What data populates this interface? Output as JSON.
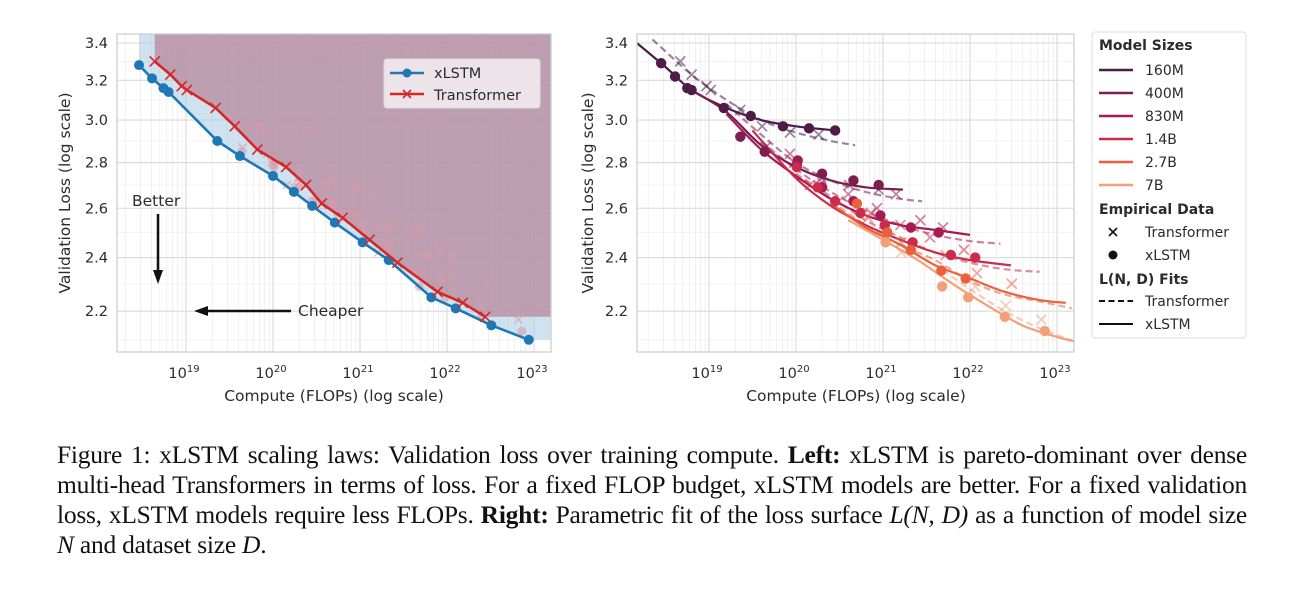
{
  "chart_data": [
    {
      "type": "line",
      "panel": "left",
      "xlabel": "Compute (FLOPs) (log scale)",
      "ylabel": "Validation Loss (log scale)",
      "xscale": "log10",
      "yscale": "log",
      "xlim_log10": [
        18.21,
        23.2
      ],
      "ylim": [
        2.06,
        3.45
      ],
      "xticks": [
        {
          "log10": 19,
          "label_base": "10",
          "label_exp": "19"
        },
        {
          "log10": 20,
          "label_base": "10",
          "label_exp": "20"
        },
        {
          "log10": 21,
          "label_base": "10",
          "label_exp": "21"
        },
        {
          "log10": 22,
          "label_base": "10",
          "label_exp": "22"
        },
        {
          "log10": 23,
          "label_base": "10",
          "label_exp": "23"
        }
      ],
      "yticks": [
        3.4,
        3.2,
        3.0,
        2.8,
        2.6,
        2.4,
        2.2
      ],
      "ytick_labels": [
        "3.4",
        "3.2",
        "3.0",
        "2.8",
        "2.6",
        "2.4",
        "2.2"
      ],
      "grid": true,
      "legend": {
        "placement": "top-right",
        "entries": [
          "xLSTM",
          "Transformer"
        ]
      },
      "series": [
        {
          "name": "xLSTM",
          "color": "#1f77b4",
          "marker": "circle",
          "x_log10": [
            18.46,
            18.61,
            18.74,
            18.8,
            19.36,
            19.62,
            20.0,
            20.24,
            20.45,
            20.71,
            21.03,
            21.33,
            21.82,
            22.1,
            22.51,
            22.94
          ],
          "y": [
            3.28,
            3.21,
            3.16,
            3.14,
            2.9,
            2.83,
            2.74,
            2.67,
            2.61,
            2.54,
            2.46,
            2.39,
            2.25,
            2.21,
            2.15,
            2.1
          ]
        },
        {
          "name": "Transformer",
          "color": "#d62728",
          "marker": "x",
          "x_log10": [
            18.64,
            18.82,
            18.95,
            19.01,
            19.34,
            19.56,
            19.82,
            20.15,
            20.38,
            20.56,
            20.8,
            21.11,
            21.43,
            21.89,
            22.18,
            22.44
          ],
          "y": [
            3.3,
            3.23,
            3.17,
            3.15,
            3.06,
            2.97,
            2.86,
            2.78,
            2.7,
            2.62,
            2.56,
            2.47,
            2.38,
            2.27,
            2.23,
            2.18
          ]
        }
      ],
      "shaded_regions": [
        {
          "name": "xLSTM dominated region",
          "color": "#a6cbe3",
          "bounded_by": "xLSTM"
        },
        {
          "name": "Transformer dominated region",
          "color": "#b98398",
          "bounded_by": "Transformer"
        }
      ],
      "background_points": "faded copies of the right panel empirical data",
      "annotations": [
        {
          "text": "Better",
          "arrow": "down"
        },
        {
          "text": "Cheaper",
          "arrow": "left"
        }
      ]
    },
    {
      "type": "line",
      "panel": "right",
      "xlabel": "Compute (FLOPs) (log scale)",
      "ylabel": "Validation Loss (log scale)",
      "xscale": "log10",
      "yscale": "log",
      "xlim_log10": [
        18.17,
        23.2
      ],
      "ylim": [
        2.06,
        3.45
      ],
      "xticks": [
        {
          "log10": 19,
          "label_base": "10",
          "label_exp": "19"
        },
        {
          "log10": 20,
          "label_base": "10",
          "label_exp": "20"
        },
        {
          "log10": 21,
          "label_base": "10",
          "label_exp": "21"
        },
        {
          "log10": 22,
          "label_base": "10",
          "label_exp": "22"
        },
        {
          "log10": 23,
          "label_base": "10",
          "label_exp": "23"
        }
      ],
      "yticks": [
        3.4,
        3.2,
        3.0,
        2.8,
        2.6,
        2.4,
        2.2
      ],
      "ytick_labels": [
        "3.4",
        "3.2",
        "3.0",
        "2.8",
        "2.6",
        "2.4",
        "2.2"
      ],
      "grid": true,
      "legend": {
        "placement": "outside-right",
        "sections": [
          {
            "title": "Model Sizes",
            "entries": [
              "160M",
              "400M",
              "830M",
              "1.4B",
              "2.7B",
              "7B"
            ]
          },
          {
            "title": "Empirical Data",
            "entries": [
              "Transformer",
              "xLSTM"
            ]
          },
          {
            "title": "L(N, D) Fits",
            "entries": [
              "Transformer",
              "xLSTM"
            ]
          }
        ]
      },
      "model_sizes": [
        {
          "name": "160M",
          "color": "#4b1d48",
          "xlstm_points": {
            "x_log10": [
              18.45,
              18.61,
              18.75,
              18.8,
              19.17,
              19.48,
              19.85,
              20.15,
              20.45
            ],
            "y": [
              3.29,
              3.22,
              3.16,
              3.15,
              3.06,
              3.02,
              2.97,
              2.96,
              2.95
            ]
          },
          "transformer_points": {
            "x_log10": [
              18.67,
              18.8,
              18.97,
              19.02,
              19.36,
              19.61,
              19.93,
              20.26
            ],
            "y": [
              3.3,
              3.23,
              3.17,
              3.15,
              3.05,
              2.97,
              2.94,
              2.93
            ]
          },
          "xlstm_fit": {
            "x_log10": [
              18.17,
              18.5,
              18.8,
              19.2,
              19.6,
              20.0,
              20.45
            ],
            "y": [
              3.4,
              3.27,
              3.15,
              3.06,
              3.0,
              2.97,
              2.95
            ]
          },
          "transformer_fit": {
            "x_log10": [
              18.35,
              18.8,
              19.2,
              19.6,
              20.0,
              20.4,
              20.68
            ],
            "y": [
              3.42,
              3.23,
              3.1,
              3.0,
              2.94,
              2.9,
              2.88
            ]
          }
        },
        {
          "name": "400M",
          "color": "#7b1e50",
          "xlstm_points": {
            "x_log10": [
              19.36,
              19.64,
              20.01,
              20.3,
              20.66,
              20.95
            ],
            "y": [
              2.92,
              2.85,
              2.79,
              2.75,
              2.72,
              2.7
            ]
          },
          "transformer_points": {
            "x_log10": [
              19.65,
              19.98,
              20.29,
              20.61,
              20.95,
              21.15
            ],
            "y": [
              2.87,
              2.8,
              2.73,
              2.7,
              2.68,
              2.66
            ]
          },
          "xlstm_fit": {
            "x_log10": [
              18.8,
              19.2,
              19.6,
              20.0,
              20.4,
              20.8,
              21.23
            ],
            "y": [
              3.15,
              3.04,
              2.88,
              2.78,
              2.72,
              2.69,
              2.68
            ]
          },
          "transformer_fit": {
            "x_log10": [
              19.2,
              19.6,
              20.0,
              20.4,
              20.8,
              21.2,
              21.45
            ],
            "y": [
              3.08,
              2.93,
              2.8,
              2.72,
              2.67,
              2.64,
              2.63
            ]
          }
        },
        {
          "name": "830M",
          "color": "#a51b52",
          "xlstm_points": {
            "x_log10": [
              20.02,
              20.3,
              20.66,
              20.97,
              21.32,
              21.64
            ],
            "y": [
              2.81,
              2.69,
              2.63,
              2.57,
              2.52,
              2.5
            ]
          },
          "transformer_points": {
            "x_log10": [
              19.93,
              20.3,
              20.6,
              20.93,
              21.43,
              21.69
            ],
            "y": [
              2.84,
              2.71,
              2.66,
              2.6,
              2.55,
              2.52
            ]
          },
          "xlstm_fit": {
            "x_log10": [
              19.2,
              19.6,
              20.0,
              20.4,
              20.8,
              21.2,
              21.6,
              22.0
            ],
            "y": [
              3.03,
              2.86,
              2.74,
              2.64,
              2.57,
              2.53,
              2.51,
              2.49
            ]
          },
          "transformer_fit": {
            "x_log10": [
              19.6,
              20.0,
              20.4,
              20.8,
              21.2,
              21.6,
              22.0,
              22.35
            ],
            "y": [
              2.9,
              2.77,
              2.67,
              2.59,
              2.53,
              2.49,
              2.465,
              2.455
            ]
          }
        },
        {
          "name": "1.4B",
          "color": "#cc2c4c",
          "xlstm_points": {
            "x_log10": [
              20.01,
              20.25,
              20.45,
              20.74,
              21.02,
              21.34,
              21.78,
              22.06
            ],
            "y": [
              2.78,
              2.69,
              2.63,
              2.58,
              2.53,
              2.46,
              2.41,
              2.4
            ]
          },
          "transformer_points": {
            "x_log10": [
              20.16,
              20.49,
              20.86,
              21.2,
              21.54,
              21.93
            ],
            "y": [
              2.7,
              2.63,
              2.58,
              2.53,
              2.48,
              2.43
            ]
          },
          "xlstm_fit": {
            "x_log10": [
              19.5,
              20.0,
              20.4,
              20.8,
              21.2,
              21.6,
              22.0,
              22.47
            ],
            "y": [
              2.95,
              2.73,
              2.61,
              2.53,
              2.47,
              2.42,
              2.39,
              2.37
            ]
          },
          "transformer_fit": {
            "x_log10": [
              20.0,
              20.4,
              20.8,
              21.2,
              21.6,
              22.0,
              22.4,
              22.8
            ],
            "y": [
              2.75,
              2.65,
              2.55,
              2.48,
              2.42,
              2.38,
              2.355,
              2.345
            ]
          }
        },
        {
          "name": "2.7B",
          "color": "#e8613c",
          "xlstm_points": {
            "x_log10": [
              20.7,
              21.05,
              21.32,
              21.67,
              21.95
            ],
            "y": [
              2.62,
              2.5,
              2.43,
              2.35,
              2.32
            ]
          },
          "transformer_points": {
            "x_log10": [
              20.83,
              21.21,
              21.72,
              22.08,
              22.48
            ],
            "y": [
              2.56,
              2.46,
              2.41,
              2.34,
              2.3
            ]
          },
          "xlstm_fit": {
            "x_log10": [
              20.4,
              20.8,
              21.2,
              21.6,
              22.0,
              22.4,
              22.8,
              23.1
            ],
            "y": [
              2.62,
              2.52,
              2.45,
              2.37,
              2.32,
              2.27,
              2.24,
              2.23
            ]
          },
          "transformer_fit": {
            "x_log10": [
              20.4,
              20.8,
              21.2,
              21.6,
              22.0,
              22.4,
              22.8,
              23.17
            ],
            "y": [
              2.63,
              2.53,
              2.45,
              2.39,
              2.31,
              2.26,
              2.235,
              2.21
            ]
          }
        },
        {
          "name": "7B",
          "color": "#f3a07a",
          "xlstm_points": {
            "x_log10": [
              21.03,
              21.68,
              21.98,
              22.4,
              22.86
            ],
            "y": [
              2.46,
              2.29,
              2.25,
              2.18,
              2.13
            ]
          },
          "transformer_points": {
            "x_log10": [
              21.21,
              22.06,
              22.41,
              22.82
            ],
            "y": [
              2.42,
              2.29,
              2.22,
              2.17
            ]
          },
          "xlstm_fit": {
            "x_log10": [
              20.6,
              21.0,
              21.4,
              21.8,
              22.2,
              22.6,
              23.0,
              23.2
            ],
            "y": [
              2.55,
              2.47,
              2.39,
              2.3,
              2.22,
              2.15,
              2.11,
              2.095
            ]
          },
          "transformer_fit": {
            "x_log10": [
              20.8,
              21.2,
              21.6,
              22.0,
              22.4,
              22.8,
              23.2
            ],
            "y": [
              2.52,
              2.45,
              2.37,
              2.28,
              2.2,
              2.14,
              2.095
            ]
          }
        }
      ]
    }
  ],
  "labels": {
    "left_legend": {
      "xlstm": "xLSTM",
      "transformer": "Transformer"
    },
    "better": "Better",
    "cheaper": "Cheaper",
    "xlabel": "Compute (FLOPs) (log scale)",
    "ylabel": "Validation Loss (log scale)",
    "right_legend": {
      "sizes_title": "Model Sizes",
      "sizes": [
        "160M",
        "400M",
        "830M",
        "1.4B",
        "2.7B",
        "7B"
      ],
      "empirical_title": "Empirical Data",
      "empirical_transformer": "Transformer",
      "empirical_xlstm": "xLSTM",
      "fits_title": "L(N, D) Fits",
      "fit_transformer": "Transformer",
      "fit_xlstm": "xLSTM"
    }
  },
  "caption": {
    "prefix": "Figure 1: xLSTM scaling laws: Validation loss over training compute. ",
    "left_label": "Left:",
    "left_text": " xLSTM is pareto-dominant over dense multi-head Transformers in terms of loss. For a fixed FLOP budget, xLSTM models are better. For a fixed validation loss, xLSTM models require less FLOPs. ",
    "right_label": "Right:",
    "right_text_1": " Parametric fit of the loss surface ",
    "math_L": "L",
    "math_args": "(N, D)",
    "right_text_2": " as a function of model size ",
    "math_N": "N",
    "right_text_3": " and dataset size ",
    "math_D": "D",
    "right_text_4": "."
  }
}
